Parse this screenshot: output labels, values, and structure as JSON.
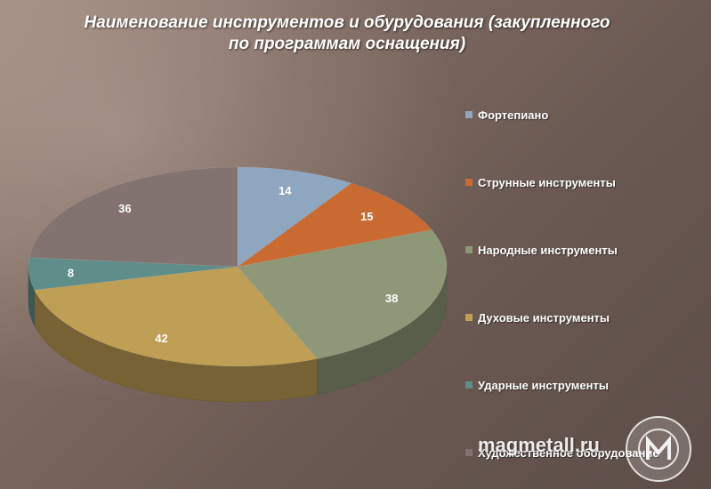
{
  "title_line1": "Наименование инструментов и обурудования (закупленного",
  "title_line2": "по программам оснащения)",
  "watermark": "magmetall.ru",
  "chart_data": {
    "type": "pie",
    "title": "Наименование инструментов и обурудования (закупленного по программам оснащения)",
    "categories": [
      "Фортепиано",
      "Струнные инструменты",
      "Народные инструменты",
      "Духовые инструменты",
      "Ударные инструменты",
      "Художественное оборудование"
    ],
    "values": [
      14,
      15,
      38,
      42,
      8,
      36
    ],
    "colors": [
      "#8fa6c0",
      "#c86a32",
      "#8e9878",
      "#bf9e55",
      "#5f8e8a",
      "#837370"
    ],
    "legend": "right",
    "data_labels": true,
    "style": "3d"
  }
}
